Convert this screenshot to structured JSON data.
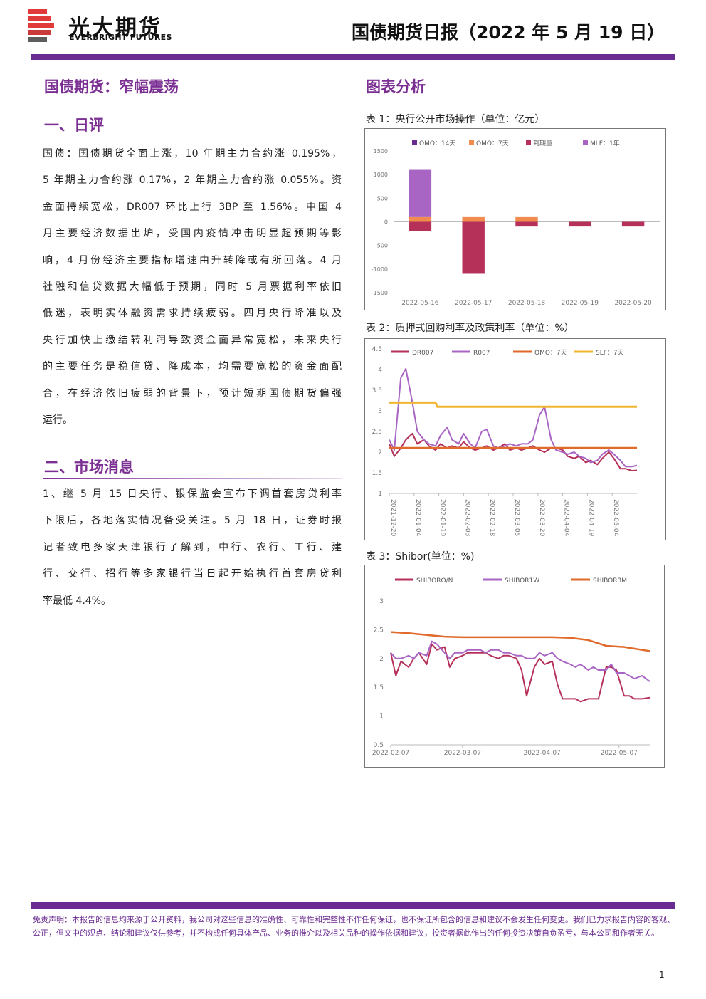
{
  "header": {
    "brand_cn": "光大期货",
    "brand_en": "EVERBRIGHT FUTURES",
    "report_title": "国债期货日报（2022 年 5 月 19 日）",
    "accent_color": "#6b2c91",
    "logo_colors": [
      "#e03a3a",
      "#5d5d5d"
    ]
  },
  "main_title": "国债期货：窄幅震荡",
  "section1": {
    "heading": "一、日评",
    "lines": [
      "国债：国债期货全面上涨，10 年期主力合约涨 0.195%，",
      "5 年期主力合约涨 0.17%，2 年期主力合约涨 0.055%。资",
      "金面持续宽松，DR007 环比上行 3BP 至 1.56%。中国 4",
      "月主要经济数据出炉，受国内疫情冲击明显超预期等影",
      "响，4 月份经济主要指标增速由升转降或有所回落。4 月",
      "社融和信贷数据大幅低于预期，同时 5 月票据利率依旧",
      "低迷，表明实体融资需求持续疲弱。四月央行降准以及",
      "央行加快上缴结转利润导致资金面异常宽松，未来央行",
      "的主要任务是稳信贷、降成本，均需要宽松的资金面配",
      "合，在经济依旧疲弱的背景下，预计短期国债期货偏强",
      "运行。"
    ]
  },
  "section2": {
    "heading": "二、市场消息",
    "lines": [
      "1、继 5 月 15 日央行、银保监会宣布下调首套房贷利率",
      "下限后，各地落实情况备受关注。5 月 18 日，证券时报",
      "记者致电多家天津银行了解到，中行、农行、工行、建",
      "行、交行、招行等多家银行当日起开始执行首套房贷利",
      "率最低 4.4%。"
    ]
  },
  "charts_heading": "图表分析",
  "chart_data": [
    {
      "caption": "表 1：央行公开市场操作（单位：亿元）",
      "type": "bar",
      "stacked": true,
      "categories": [
        "2022-05-16",
        "2022-05-17",
        "2022-05-18",
        "2022-05-19",
        "2022-05-20"
      ],
      "series": [
        {
          "name": "OMO：14天",
          "color": "#6b2c91",
          "values": [
            0,
            0,
            0,
            0,
            0
          ]
        },
        {
          "name": "OMO：7天",
          "color": "#f08c4e",
          "values": [
            100,
            100,
            100,
            0,
            0
          ]
        },
        {
          "name": "到期量",
          "color": "#b5315a",
          "values": [
            -200,
            -1100,
            -100,
            -100,
            -100
          ]
        },
        {
          "name": "MLF：1年",
          "color": "#a865c4",
          "values": [
            1000,
            0,
            0,
            0,
            0
          ]
        }
      ],
      "ylim": [
        -1500,
        1500
      ],
      "yticks": [
        1500,
        1000,
        500,
        0,
        -500,
        -1000,
        -1500
      ],
      "legend": "top",
      "grid": false
    },
    {
      "caption": "表 2：质押式回购利率及政策利率（单位：%）",
      "type": "line",
      "x_ticks": [
        "2021-12-20",
        "2022-01-04",
        "2022-01-19",
        "2022-02-03",
        "2022-02-18",
        "2022-03-05",
        "2022-03-20",
        "2022-04-04",
        "2022-04-19",
        "2022-05-04"
      ],
      "x_range": [
        "2021-12-20",
        "2022-05-19"
      ],
      "ylim": [
        1,
        4.5
      ],
      "yticks": [
        4.5,
        4,
        3.5,
        3,
        2.5,
        2,
        1.5,
        1
      ],
      "legend": "top",
      "grid": false,
      "series": [
        {
          "name": "DR007",
          "color": "#b5315a",
          "width": 2,
          "x": [
            "2021-12-20",
            "2021-12-23",
            "2021-12-27",
            "2021-12-30",
            "2022-01-03",
            "2022-01-06",
            "2022-01-10",
            "2022-01-13",
            "2022-01-17",
            "2022-01-20",
            "2022-01-24",
            "2022-01-27",
            "2022-01-31",
            "2022-02-03",
            "2022-02-07",
            "2022-02-10",
            "2022-02-14",
            "2022-02-17",
            "2022-02-21",
            "2022-02-24",
            "2022-02-28",
            "2022-03-03",
            "2022-03-07",
            "2022-03-10",
            "2022-03-14",
            "2022-03-17",
            "2022-03-21",
            "2022-03-24",
            "2022-03-28",
            "2022-03-31",
            "2022-04-04",
            "2022-04-07",
            "2022-04-11",
            "2022-04-14",
            "2022-04-18",
            "2022-04-21",
            "2022-04-25",
            "2022-04-28",
            "2022-05-02",
            "2022-05-05",
            "2022-05-09",
            "2022-05-12",
            "2022-05-16",
            "2022-05-19"
          ],
          "y": [
            2.2,
            1.9,
            2.1,
            2.3,
            2.45,
            2.2,
            2.3,
            2.15,
            2.05,
            2.2,
            2.1,
            2.15,
            2.1,
            2.25,
            2.1,
            2.05,
            2.1,
            2.15,
            2.05,
            2.1,
            2.2,
            2.05,
            2.1,
            2.05,
            2.1,
            2.15,
            2.05,
            2.0,
            2.1,
            2.1,
            2.05,
            1.9,
            1.85,
            1.9,
            1.75,
            1.8,
            1.7,
            1.85,
            2.0,
            1.85,
            1.6,
            1.6,
            1.55,
            1.56
          ]
        },
        {
          "name": "R007",
          "color": "#a865c4",
          "width": 2,
          "x": [
            "2021-12-20",
            "2021-12-23",
            "2021-12-27",
            "2021-12-30",
            "2022-01-03",
            "2022-01-06",
            "2022-01-10",
            "2022-01-13",
            "2022-01-17",
            "2022-01-20",
            "2022-01-24",
            "2022-01-27",
            "2022-01-31",
            "2022-02-03",
            "2022-02-07",
            "2022-02-10",
            "2022-02-14",
            "2022-02-17",
            "2022-02-21",
            "2022-02-24",
            "2022-02-28",
            "2022-03-03",
            "2022-03-07",
            "2022-03-10",
            "2022-03-14",
            "2022-03-17",
            "2022-03-21",
            "2022-03-24",
            "2022-03-28",
            "2022-03-31",
            "2022-04-04",
            "2022-04-07",
            "2022-04-11",
            "2022-04-14",
            "2022-04-18",
            "2022-04-21",
            "2022-04-25",
            "2022-04-28",
            "2022-05-02",
            "2022-05-05",
            "2022-05-09",
            "2022-05-12",
            "2022-05-16",
            "2022-05-19"
          ],
          "y": [
            2.3,
            2.05,
            3.8,
            4.02,
            3.2,
            2.5,
            2.3,
            2.2,
            2.15,
            2.4,
            2.6,
            2.3,
            2.2,
            2.45,
            2.2,
            2.1,
            2.5,
            2.55,
            2.15,
            2.1,
            2.15,
            2.2,
            2.15,
            2.2,
            2.2,
            2.3,
            2.9,
            3.1,
            2.3,
            2.05,
            2.0,
            1.95,
            2.0,
            1.9,
            1.85,
            1.75,
            1.8,
            1.95,
            2.05,
            1.95,
            1.8,
            1.65,
            1.65,
            1.68
          ]
        },
        {
          "name": "OMO：7天",
          "color": "#e06a2b",
          "width": 3,
          "x": [
            "2021-12-20",
            "2022-05-19"
          ],
          "y": [
            2.1,
            2.1
          ]
        },
        {
          "name": "SLF：7天",
          "color": "#f2b533",
          "width": 3,
          "x": [
            "2021-12-20",
            "2022-01-17",
            "2022-01-18",
            "2022-05-19"
          ],
          "y": [
            3.2,
            3.2,
            3.1,
            3.1
          ]
        }
      ]
    },
    {
      "caption": "表 3：Shibor(单位：%)",
      "type": "line",
      "x_ticks": [
        "2022-02-07",
        "2022-03-07",
        "2022-04-07",
        "2022-05-07"
      ],
      "x_range": [
        "2022-02-07",
        "2022-05-19"
      ],
      "ylim": [
        0.5,
        3
      ],
      "yticks": [
        3,
        2.5,
        2,
        1.5,
        1,
        0.5
      ],
      "legend": "top",
      "grid": false,
      "series": [
        {
          "name": "SHIBORO/N",
          "color": "#b5315a",
          "width": 2,
          "x": [
            "2022-02-07",
            "2022-02-09",
            "2022-02-11",
            "2022-02-14",
            "2022-02-16",
            "2022-02-18",
            "2022-02-21",
            "2022-02-23",
            "2022-02-25",
            "2022-02-28",
            "2022-03-02",
            "2022-03-04",
            "2022-03-07",
            "2022-03-09",
            "2022-03-11",
            "2022-03-14",
            "2022-03-16",
            "2022-03-18",
            "2022-03-21",
            "2022-03-23",
            "2022-03-25",
            "2022-03-28",
            "2022-03-30",
            "2022-04-01",
            "2022-04-04",
            "2022-04-06",
            "2022-04-08",
            "2022-04-11",
            "2022-04-13",
            "2022-04-15",
            "2022-04-18",
            "2022-04-20",
            "2022-04-22",
            "2022-04-25",
            "2022-04-27",
            "2022-04-29",
            "2022-05-02",
            "2022-05-04",
            "2022-05-06",
            "2022-05-09",
            "2022-05-11",
            "2022-05-13",
            "2022-05-16",
            "2022-05-19"
          ],
          "y": [
            2.1,
            1.7,
            1.95,
            1.85,
            2.0,
            2.1,
            1.9,
            2.25,
            2.15,
            2.2,
            1.85,
            2.0,
            2.05,
            2.1,
            2.1,
            2.1,
            2.1,
            2.05,
            2.0,
            2.05,
            2.05,
            2.0,
            1.8,
            1.35,
            1.85,
            2.0,
            1.9,
            1.95,
            1.55,
            1.3,
            1.3,
            1.3,
            1.25,
            1.3,
            1.3,
            1.3,
            1.85,
            1.85,
            1.8,
            1.35,
            1.35,
            1.3,
            1.3,
            1.32
          ]
        },
        {
          "name": "SHIBOR1W",
          "color": "#a865c4",
          "width": 2,
          "x": [
            "2022-02-07",
            "2022-02-09",
            "2022-02-11",
            "2022-02-14",
            "2022-02-16",
            "2022-02-18",
            "2022-02-21",
            "2022-02-23",
            "2022-02-25",
            "2022-02-28",
            "2022-03-02",
            "2022-03-04",
            "2022-03-07",
            "2022-03-09",
            "2022-03-11",
            "2022-03-14",
            "2022-03-16",
            "2022-03-18",
            "2022-03-21",
            "2022-03-23",
            "2022-03-25",
            "2022-03-28",
            "2022-03-30",
            "2022-04-01",
            "2022-04-04",
            "2022-04-06",
            "2022-04-08",
            "2022-04-11",
            "2022-04-13",
            "2022-04-15",
            "2022-04-18",
            "2022-04-20",
            "2022-04-22",
            "2022-04-25",
            "2022-04-27",
            "2022-04-29",
            "2022-05-02",
            "2022-05-04",
            "2022-05-06",
            "2022-05-09",
            "2022-05-11",
            "2022-05-13",
            "2022-05-16",
            "2022-05-19"
          ],
          "y": [
            2.1,
            2.0,
            2.0,
            2.05,
            2.0,
            2.1,
            2.05,
            2.3,
            2.25,
            2.1,
            2.0,
            2.1,
            2.1,
            2.15,
            2.15,
            2.15,
            2.1,
            2.15,
            2.15,
            2.1,
            2.1,
            2.05,
            2.05,
            2.0,
            2.0,
            2.1,
            2.05,
            2.1,
            2.0,
            1.95,
            1.9,
            1.85,
            1.9,
            1.8,
            1.85,
            1.8,
            1.8,
            1.9,
            1.75,
            1.75,
            1.7,
            1.65,
            1.7,
            1.6
          ]
        },
        {
          "name": "SHIBOR3M",
          "color": "#e06a2b",
          "width": 2.5,
          "x": [
            "2022-02-07",
            "2022-02-14",
            "2022-02-21",
            "2022-02-28",
            "2022-03-07",
            "2022-03-14",
            "2022-03-21",
            "2022-03-28",
            "2022-04-04",
            "2022-04-11",
            "2022-04-18",
            "2022-04-25",
            "2022-05-02",
            "2022-05-09",
            "2022-05-16",
            "2022-05-19"
          ],
          "y": [
            2.46,
            2.44,
            2.41,
            2.38,
            2.37,
            2.37,
            2.37,
            2.37,
            2.37,
            2.37,
            2.36,
            2.32,
            2.22,
            2.2,
            2.15,
            2.13
          ]
        }
      ]
    }
  ],
  "footer": {
    "disclaimer": "免责声明：本报告的信息均来源于公开资料，我公司对这些信息的准确性、可靠性和完整性不作任何保证，也不保证所包含的信息和建议不会发生任何变更。我们已力求报告内容的客观、公正，但文中的观点、结论和建议仅供参考，并不构成任何具体产品、业务的推介以及相关品种的操作依据和建议，投资者据此作出的任何投资决策自负盈亏，与本公司和作者无关。",
    "page_number": "1"
  }
}
